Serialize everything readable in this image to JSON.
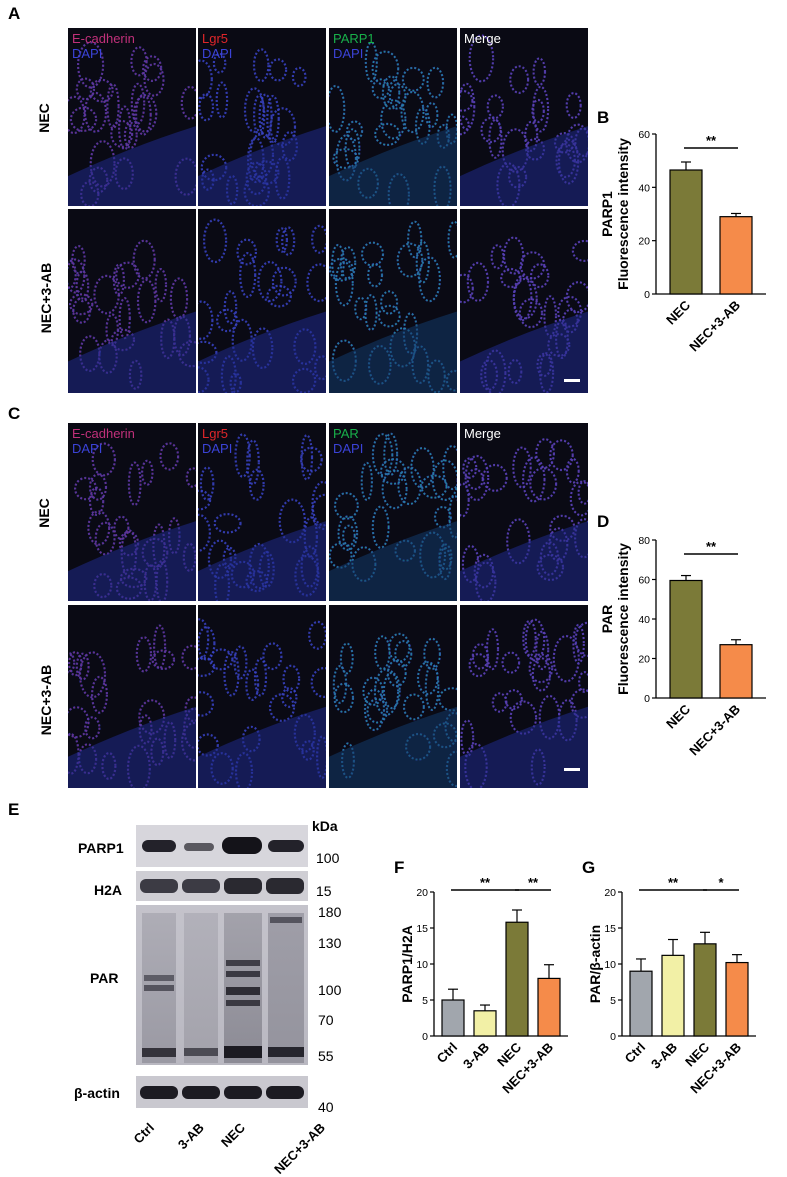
{
  "figure": {
    "panel_letters": {
      "A": "A",
      "B": "B",
      "C": "C",
      "D": "D",
      "E": "E",
      "F": "F",
      "G": "G"
    },
    "panel_A": {
      "row_labels": [
        "NEC",
        "NEC+3-AB"
      ],
      "columns": [
        {
          "stain": "E-cadherin",
          "counter": "DAPI",
          "color": "#c0307a"
        },
        {
          "stain": "Lgr5",
          "counter": "DAPI",
          "color": "#e0262a"
        },
        {
          "stain": "PARP1",
          "counter": "DAPI",
          "color": "#18b04a"
        },
        {
          "stain": "Merge",
          "counter": "",
          "color": "#ffffff"
        }
      ]
    },
    "panel_C": {
      "row_labels": [
        "NEC",
        "NEC+3-AB"
      ],
      "columns": [
        {
          "stain": "E-cadherin",
          "counter": "DAPI",
          "color": "#c0307a"
        },
        {
          "stain": "Lgr5",
          "counter": "DAPI",
          "color": "#e0262a"
        },
        {
          "stain": "PAR",
          "counter": "DAPI",
          "color": "#18b04a"
        },
        {
          "stain": "Merge",
          "counter": "",
          "color": "#ffffff"
        }
      ]
    },
    "panel_E": {
      "kda_label": "kDa",
      "rows": [
        {
          "label": "PARP1",
          "markers": [
            "100"
          ]
        },
        {
          "label": "H2A",
          "markers": [
            "15"
          ]
        },
        {
          "label": "PAR",
          "markers": [
            "180",
            "130",
            "100",
            "70",
            "55"
          ]
        },
        {
          "label": "β-actin",
          "markers": [
            "40"
          ]
        }
      ],
      "lanes": [
        "Ctrl",
        "3-AB",
        "NEC",
        "NEC+3-AB"
      ]
    }
  },
  "chart_data": [
    {
      "id": "B",
      "type": "bar",
      "ylabel_line1": "PARP1",
      "ylabel_line2": "Fluorescence intensity",
      "categories": [
        "NEC",
        "NEC+3-AB"
      ],
      "values": [
        46.5,
        29
      ],
      "errors": [
        3,
        1.2
      ],
      "colors": [
        "#7b7a38",
        "#f58b4a"
      ],
      "ylim": [
        0,
        60
      ],
      "yticks": [
        "0",
        "20",
        "40",
        "60"
      ],
      "significance": [
        {
          "from": 0,
          "to": 1,
          "label": "**"
        }
      ]
    },
    {
      "id": "D",
      "type": "bar",
      "ylabel_line1": "PAR",
      "ylabel_line2": "Fluorescence intensity",
      "categories": [
        "NEC",
        "NEC+3-AB"
      ],
      "values": [
        59.5,
        27
      ],
      "errors": [
        2.5,
        2.5
      ],
      "colors": [
        "#7b7a38",
        "#f58b4a"
      ],
      "ylim": [
        0,
        80
      ],
      "yticks": [
        "0",
        "20",
        "40",
        "60",
        "80"
      ],
      "significance": [
        {
          "from": 0,
          "to": 1,
          "label": "**"
        }
      ]
    },
    {
      "id": "F",
      "type": "bar",
      "ylabel_line1": "PARP1/H2A",
      "ylabel_line2": "",
      "categories": [
        "Ctrl",
        "3-AB",
        "NEC",
        "NEC+3-AB"
      ],
      "values": [
        5,
        3.5,
        15.8,
        8
      ],
      "errors": [
        1.5,
        0.8,
        1.7,
        1.9
      ],
      "colors": [
        "#a1a6ad",
        "#f2f0a6",
        "#7b7a38",
        "#f58b4a"
      ],
      "ylim": [
        0,
        20
      ],
      "yticks": [
        "0",
        "5",
        "10",
        "15",
        "20"
      ],
      "significance": [
        {
          "from": 0,
          "to": 2,
          "label": "**"
        },
        {
          "from": 2,
          "to": 3,
          "label": "**"
        }
      ]
    },
    {
      "id": "G",
      "type": "bar",
      "ylabel_line1": "PAR/β-actin",
      "ylabel_line2": "",
      "categories": [
        "Ctrl",
        "3-AB",
        "NEC",
        "NEC+3-AB"
      ],
      "values": [
        9,
        11.2,
        12.8,
        10.2
      ],
      "errors": [
        1.7,
        2.2,
        1.6,
        1.1
      ],
      "colors": [
        "#a1a6ad",
        "#f2f0a6",
        "#7b7a38",
        "#f58b4a"
      ],
      "ylim": [
        0,
        20
      ],
      "yticks": [
        "0",
        "5",
        "10",
        "15",
        "20"
      ],
      "significance": [
        {
          "from": 0,
          "to": 2,
          "label": "**"
        },
        {
          "from": 2,
          "to": 3,
          "label": "*"
        }
      ]
    }
  ]
}
